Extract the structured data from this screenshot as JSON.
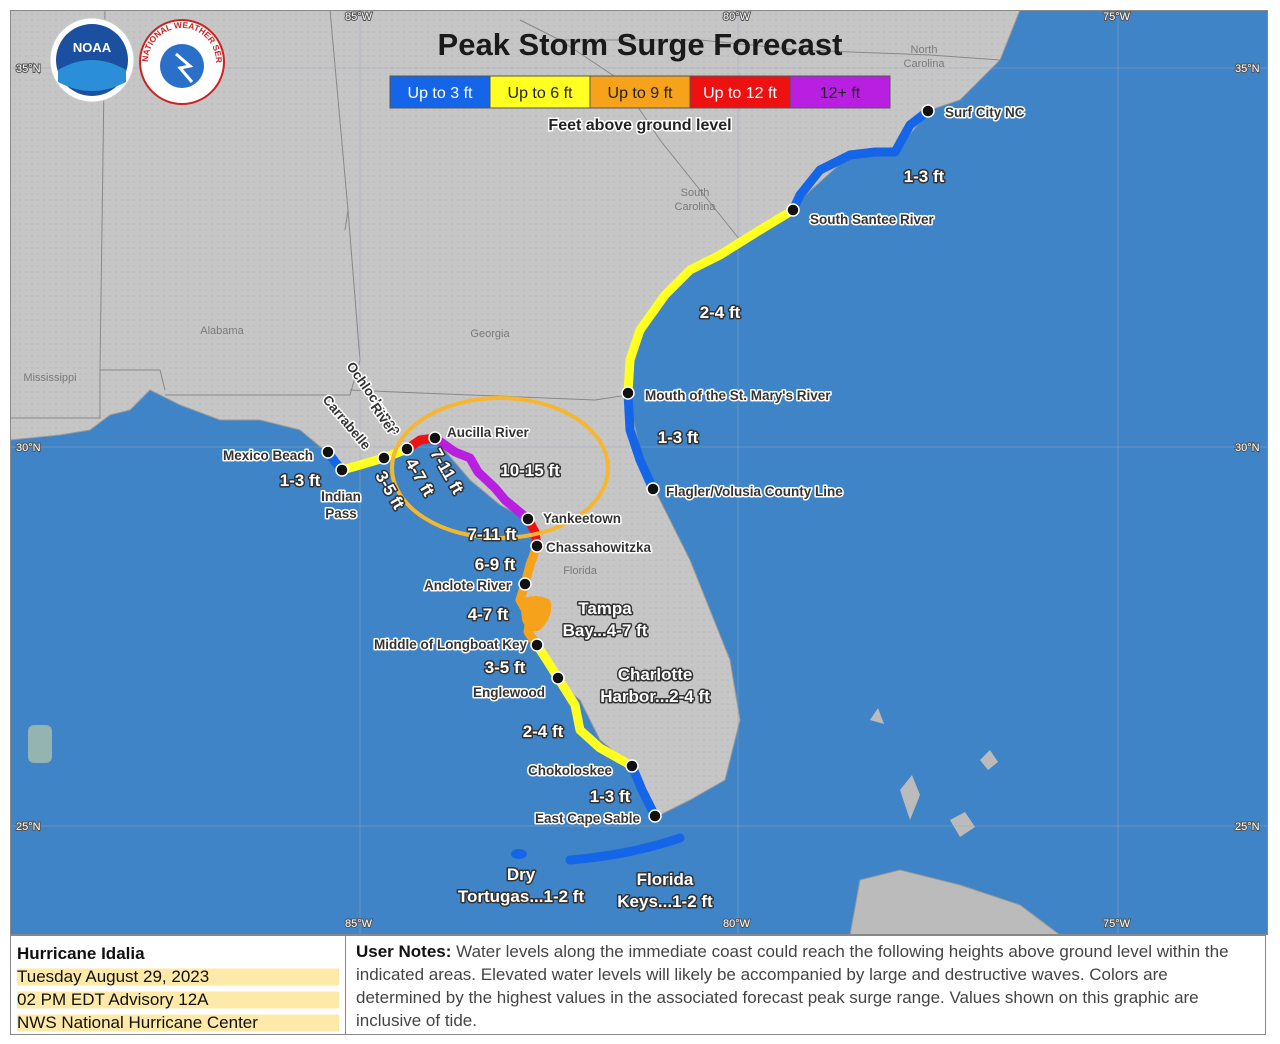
{
  "title": "Peak Storm Surge Forecast",
  "legend": {
    "items": [
      {
        "label": "Up to 3 ft",
        "color": "#1565e8"
      },
      {
        "label": "Up to 6 ft",
        "color": "#ffff22"
      },
      {
        "label": "Up to 9 ft",
        "color": "#f7a21b"
      },
      {
        "label": "Up to 12 ft",
        "color": "#ee1111"
      },
      {
        "label": "12+ ft",
        "color": "#b81fe0"
      }
    ],
    "caption": "Feet above ground level"
  },
  "logos": {
    "noaa": "NOAA",
    "nws": "NATIONAL WEATHER SERVICE"
  },
  "grid": {
    "lon": [
      "85°W",
      "80°W",
      "75°W"
    ],
    "lat": [
      "35°N",
      "30°N",
      "25°N"
    ]
  },
  "regions": [
    [
      "North",
      "Carolina"
    ],
    [
      "South",
      "Carolina"
    ],
    [
      "Georgia"
    ],
    [
      "Alabama"
    ],
    [
      "Mississippi"
    ],
    [
      "Florida"
    ]
  ],
  "locations": [
    [
      "Surf City NC"
    ],
    [
      "South Santee River"
    ],
    [
      "Mouth of the St. Mary's River"
    ],
    [
      "Flagler/Volusia County Line"
    ],
    [
      "Aucilla River"
    ],
    [
      "Yankeetown"
    ],
    [
      "Chassahowitzka"
    ],
    [
      "Anclote River"
    ],
    [
      "Middle of Longboat Key"
    ],
    [
      "Englewood"
    ],
    [
      "Chokoloskee"
    ],
    [
      "East Cape Sable"
    ],
    [
      "Mexico Beach"
    ],
    [
      "Indian",
      "Pass"
    ],
    [
      "Carrabelle"
    ],
    [
      "Ochlockonee",
      "River"
    ]
  ],
  "surge_labels": [
    [
      "1-3 ft"
    ],
    [
      "2-4 ft"
    ],
    [
      "1-3 ft"
    ],
    [
      "1-3 ft"
    ],
    [
      "3-5 ft"
    ],
    [
      "4-7 ft"
    ],
    [
      "7-11 ft"
    ],
    [
      "10-15 ft"
    ],
    [
      "7-11 ft"
    ],
    [
      "6-9 ft"
    ],
    [
      "4-7 ft"
    ],
    [
      "Tampa",
      "Bay...4-7 ft"
    ],
    [
      "3-5 ft"
    ],
    [
      "Charlotte",
      "Harbor...2-4 ft"
    ],
    [
      "2-4 ft"
    ],
    [
      "1-3 ft"
    ],
    [
      "Dry",
      "Tortugas...1-2 ft"
    ],
    [
      "Florida",
      "Keys...1-2 ft"
    ]
  ],
  "footer": {
    "storm": "Hurricane Idalia",
    "date": "Tuesday August 29, 2023",
    "advisory": "02 PM EDT Advisory 12A",
    "center": "NWS National Hurricane Center",
    "notes_label": "User Notes:",
    "notes": "Water levels along the immediate coast could reach the following heights above ground level within the indicated areas. Elevated water levels will likely be accompanied by large and destructive waves. Colors are determined by the highest values in the associated forecast peak surge range. Values shown on this graphic are inclusive of tide."
  }
}
